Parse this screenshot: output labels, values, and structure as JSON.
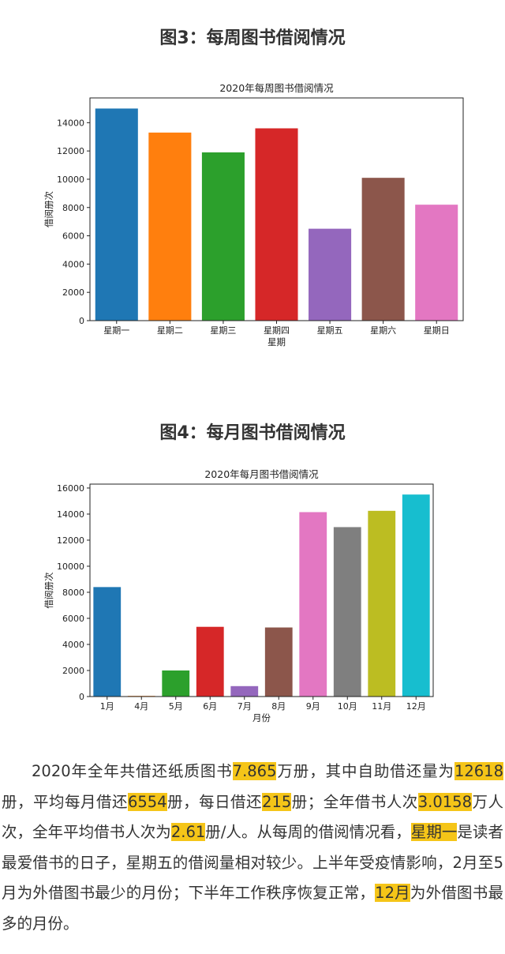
{
  "headings": {
    "fig3": "图3：每周图书借阅情况",
    "fig4": "图4：每月图书借阅情况"
  },
  "colors": {
    "highlight": "#f5c518",
    "palette": [
      "#1f77b4",
      "#ff7f0e",
      "#2ca02c",
      "#d62728",
      "#9467bd",
      "#8c564b",
      "#e377c2",
      "#7f7f7f",
      "#bcbd22",
      "#17becf"
    ]
  },
  "chart_data": [
    {
      "type": "bar",
      "title": "2020年每周图书借阅情况",
      "xlabel": "星期",
      "ylabel": "借阅册次",
      "categories": [
        "星期一",
        "星期二",
        "星期三",
        "星期四",
        "星期五",
        "星期六",
        "星期日"
      ],
      "values": [
        15000,
        13300,
        11900,
        13600,
        6500,
        10100,
        8200
      ],
      "ylim": [
        0,
        15750
      ],
      "yticks": [
        0,
        2000,
        4000,
        6000,
        8000,
        10000,
        12000,
        14000
      ],
      "colors": [
        "#1f77b4",
        "#ff7f0e",
        "#2ca02c",
        "#d62728",
        "#9467bd",
        "#8c564b",
        "#e377c2"
      ],
      "grid": false
    },
    {
      "type": "bar",
      "title": "2020年每月图书借阅情况",
      "xlabel": "月份",
      "ylabel": "借阅册次",
      "categories": [
        "1月",
        "4月",
        "5月",
        "6月",
        "7月",
        "8月",
        "9月",
        "10月",
        "11月",
        "12月"
      ],
      "values": [
        8400,
        50,
        2000,
        5350,
        800,
        5300,
        14150,
        13000,
        14250,
        15500
      ],
      "ylim": [
        0,
        16300
      ],
      "yticks": [
        0,
        2000,
        4000,
        6000,
        8000,
        10000,
        12000,
        14000,
        16000
      ],
      "colors": [
        "#1f77b4",
        "#ff7f0e",
        "#2ca02c",
        "#d62728",
        "#9467bd",
        "#8c564b",
        "#e377c2",
        "#7f7f7f",
        "#bcbd22",
        "#17becf"
      ],
      "grid": false
    }
  ],
  "paragraph": {
    "t1": "2020年全年共借还纸质图书",
    "h1": "7.865",
    "t2": "万册，其中自助借还量为",
    "h2": "12618",
    "t3": "册，平均每月借还",
    "h3": "6554",
    "t4": "册，每日借还",
    "h4": "215",
    "t5": "册；全年借书人次",
    "h5": "3.0158",
    "t6": "万人次，全年平均借书人次为",
    "h6": "2.61",
    "t7": "册/人。从每周的借阅情况看，",
    "h7": "星期一",
    "t8": "是读者最爱借书的日子，星期五的借阅量相对较少。上半年受疫情影响，2月至5月为外借图书最少的月份；下半年工作秩序恢复正常，",
    "h8": "12月",
    "t9": "为外借图书最多的月份。"
  }
}
